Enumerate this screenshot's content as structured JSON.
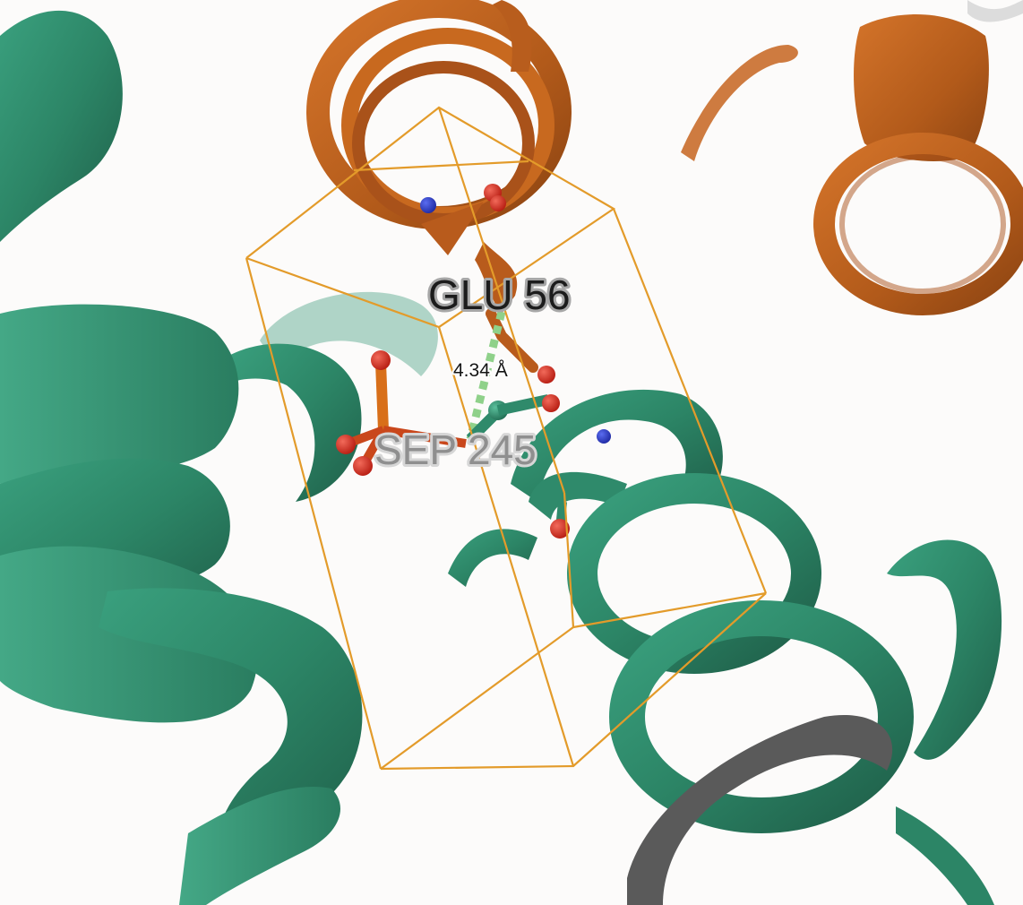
{
  "labels": {
    "residue_a": "GLU 56",
    "residue_b": "SEP 245",
    "distance": "4.34 Å"
  },
  "colors": {
    "background": "#fcfbfa",
    "chain_a": "#c5641f",
    "chain_b": "#2f8a6b",
    "cell_box": "#e39b2a",
    "oxygen": "#d3281c",
    "nitrogen": "#2b39c9",
    "phosphorus": "#e08a1c",
    "distance_line": "#8fd18a"
  },
  "icons": {
    "measurement": "dashed-distance-line",
    "selection": "orange-wireframe-box"
  }
}
